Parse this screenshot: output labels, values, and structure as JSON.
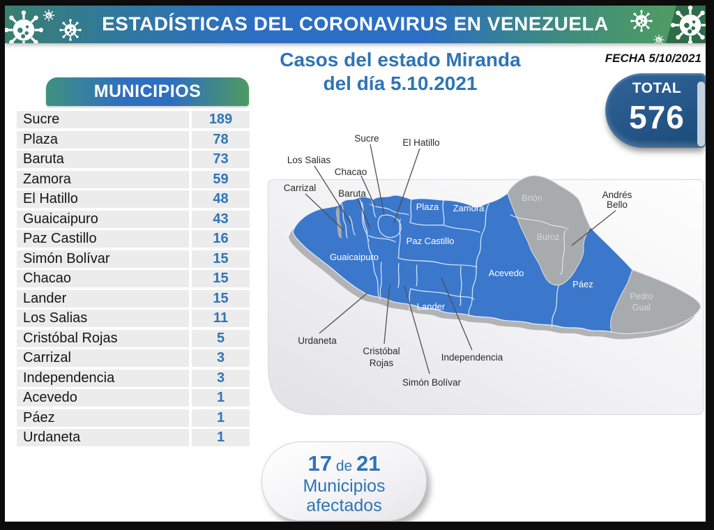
{
  "banner": {
    "title": "ESTADÍSTICAS DEL CORONAVIRUS EN VENEZUELA"
  },
  "date": {
    "label": "FECHA 5/10/2021"
  },
  "title": {
    "line1": "Casos del estado Miranda",
    "line2": "del día 5.10.2021"
  },
  "total_badge": {
    "label": "TOTAL",
    "value": "576"
  },
  "municipios_table": {
    "header": "MUNICIPIOS",
    "rows": [
      {
        "name": "Sucre",
        "value": "189"
      },
      {
        "name": "Plaza",
        "value": "78"
      },
      {
        "name": "Baruta",
        "value": "73"
      },
      {
        "name": "Zamora",
        "value": "59"
      },
      {
        "name": "El Hatillo",
        "value": "48"
      },
      {
        "name": "Guaicaipuro",
        "value": "43"
      },
      {
        "name": "Paz Castillo",
        "value": "16"
      },
      {
        "name": "Simón Bolívar",
        "value": "15"
      },
      {
        "name": "Chacao",
        "value": "15"
      },
      {
        "name": "Lander",
        "value": "15"
      },
      {
        "name": "Los Salias",
        "value": "11"
      },
      {
        "name": "Cristóbal Rojas",
        "value": "5"
      },
      {
        "name": "Carrizal",
        "value": "3"
      },
      {
        "name": "Independencia",
        "value": "3"
      },
      {
        "name": "Acevedo",
        "value": "1"
      },
      {
        "name": "Páez",
        "value": "1"
      },
      {
        "name": "Urdaneta",
        "value": "1"
      }
    ]
  },
  "map": {
    "region_labels": {
      "plaza": "Plaza",
      "zamora": "Zamora",
      "paz_castillo": "Paz Castillo",
      "guaicaipuro": "Guaicaipuro",
      "acevedo": "Acevedo",
      "lander": "Lander",
      "paez": "Páez",
      "brion": "Brión",
      "buroz": "Buroz",
      "pedro": "Pedro",
      "gual": "Gual"
    },
    "callout_labels": {
      "sucre": "Sucre",
      "el_hatillo": "El Hatillo",
      "los_salias": "Los Salias",
      "chacao": "Chacao",
      "carrizal": "Carrizal",
      "baruta": "Baruta",
      "urdaneta": "Urdaneta",
      "cristobal": "Cristóbal",
      "rojas": "Rojas",
      "simon_bolivar": "Simón Bolívar",
      "independencia": "Independencia",
      "andres": "Andrés",
      "bello": "Bello"
    }
  },
  "summary_badge": {
    "count": "17",
    "of_word": "de",
    "total": "21",
    "line2": "Municipios",
    "line3": "afectados"
  },
  "colors": {
    "accent_blue": "#2E74B5",
    "map_blue": "#3B77CB",
    "inactive_gray": "#A7ABAE",
    "badge_dark_blue": "#1F4E79"
  }
}
